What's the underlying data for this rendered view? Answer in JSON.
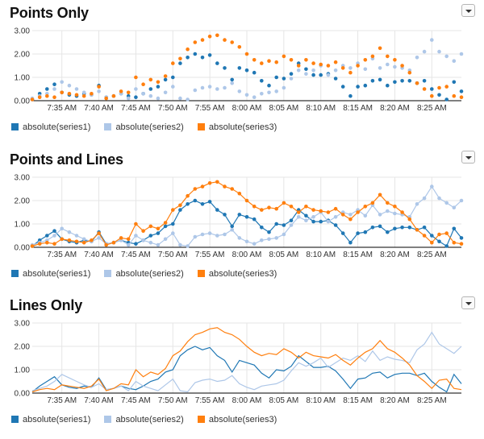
{
  "colors": {
    "series1": "#1f77b4",
    "series2": "#aec7e8",
    "series3": "#ff7f0e",
    "grid": "#e5e5e5",
    "axis": "#000000"
  },
  "legend_labels": [
    "absolute(series1)",
    "absolute(series2)",
    "absolute(series3)"
  ],
  "menu_icon": "caret-down-icon",
  "chart_data": [
    {
      "type": "scatter",
      "title": "Points Only",
      "x_unit": "time",
      "y_ticks": [
        "0.00",
        "1.00",
        "2.00",
        "3.00"
      ],
      "x_ticks": [
        "7:35 AM",
        "7:40 AM",
        "7:45 AM",
        "7:50 AM",
        "7:55 AM",
        "8:00 AM",
        "8:05 AM",
        "8:10 AM",
        "8:15 AM",
        "8:20 AM",
        "8:25 AM"
      ],
      "x_range": [
        "7:31 AM",
        "8:29 AM"
      ],
      "ylim": [
        0,
        3
      ],
      "grid": true,
      "legend_placement": "bottom-left",
      "show_points": true,
      "show_lines": false
    },
    {
      "type": "line",
      "title": "Points and Lines",
      "x_unit": "time",
      "y_ticks": [
        "0.00",
        "1.00",
        "2.00",
        "3.00"
      ],
      "x_ticks": [
        "7:35 AM",
        "7:40 AM",
        "7:45 AM",
        "7:50 AM",
        "7:55 AM",
        "8:00 AM",
        "8:05 AM",
        "8:10 AM",
        "8:15 AM",
        "8:20 AM",
        "8:25 AM"
      ],
      "x_range": [
        "7:31 AM",
        "8:29 AM"
      ],
      "ylim": [
        0,
        3
      ],
      "grid": true,
      "legend_placement": "bottom-left",
      "show_points": true,
      "show_lines": true
    },
    {
      "type": "line",
      "title": "Lines Only",
      "x_unit": "time",
      "y_ticks": [
        "0.00",
        "1.00",
        "2.00",
        "3.00"
      ],
      "x_ticks": [
        "7:35 AM",
        "7:40 AM",
        "7:45 AM",
        "7:50 AM",
        "7:55 AM",
        "8:00 AM",
        "8:05 AM",
        "8:10 AM",
        "8:15 AM",
        "8:20 AM",
        "8:25 AM"
      ],
      "x_range": [
        "7:31 AM",
        "8:29 AM"
      ],
      "ylim": [
        0,
        3
      ],
      "grid": true,
      "legend_placement": "bottom-left",
      "show_points": false,
      "show_lines": true
    }
  ],
  "series": [
    {
      "key": "series1",
      "x": [
        "7:31 AM",
        "7:32 AM",
        "7:33 AM",
        "7:34 AM",
        "7:35 AM",
        "7:36 AM",
        "7:37 AM",
        "7:38 AM",
        "7:39 AM",
        "7:40 AM",
        "7:41 AM",
        "7:42 AM",
        "7:43 AM",
        "7:44 AM",
        "7:45 AM",
        "7:46 AM",
        "7:47 AM",
        "7:48 AM",
        "7:49 AM",
        "7:50 AM",
        "7:51 AM",
        "7:52 AM",
        "7:53 AM",
        "7:54 AM",
        "7:55 AM",
        "7:56 AM",
        "7:57 AM",
        "7:58 AM",
        "7:59 AM",
        "8:00 AM",
        "8:01 AM",
        "8:02 AM",
        "8:03 AM",
        "8:04 AM",
        "8:05 AM",
        "8:06 AM",
        "8:07 AM",
        "8:08 AM",
        "8:09 AM",
        "8:10 AM",
        "8:11 AM",
        "8:12 AM",
        "8:13 AM",
        "8:14 AM",
        "8:15 AM",
        "8:16 AM",
        "8:17 AM",
        "8:18 AM",
        "8:19 AM",
        "8:20 AM",
        "8:21 AM",
        "8:22 AM",
        "8:23 AM",
        "8:24 AM",
        "8:25 AM",
        "8:26 AM",
        "8:27 AM",
        "8:28 AM",
        "8:29 AM"
      ],
      "values": [
        0.05,
        0.3,
        0.5,
        0.7,
        0.35,
        0.25,
        0.2,
        0.3,
        0.25,
        0.65,
        0.15,
        0.2,
        0.3,
        0.2,
        0.15,
        0.3,
        0.5,
        0.6,
        0.9,
        1.0,
        1.6,
        1.85,
        2.0,
        1.85,
        1.95,
        1.6,
        1.4,
        0.9,
        1.4,
        1.3,
        1.2,
        0.85,
        0.65,
        1.0,
        0.95,
        1.15,
        1.6,
        1.35,
        1.1,
        1.1,
        1.15,
        0.95,
        0.6,
        0.2,
        0.6,
        0.65,
        0.85,
        0.9,
        0.65,
        0.8,
        0.85,
        0.85,
        0.75,
        0.85,
        0.5,
        0.25,
        0.05,
        0.8,
        0.4
      ]
    },
    {
      "key": "series2",
      "x": [
        "7:31 AM",
        "7:32 AM",
        "7:33 AM",
        "7:34 AM",
        "7:35 AM",
        "7:36 AM",
        "7:37 AM",
        "7:38 AM",
        "7:39 AM",
        "7:40 AM",
        "7:41 AM",
        "7:42 AM",
        "7:43 AM",
        "7:44 AM",
        "7:45 AM",
        "7:46 AM",
        "7:47 AM",
        "7:48 AM",
        "7:49 AM",
        "7:50 AM",
        "7:51 AM",
        "7:52 AM",
        "7:53 AM",
        "7:54 AM",
        "7:55 AM",
        "7:56 AM",
        "7:57 AM",
        "7:58 AM",
        "7:59 AM",
        "8:00 AM",
        "8:01 AM",
        "8:02 AM",
        "8:03 AM",
        "8:04 AM",
        "8:05 AM",
        "8:06 AM",
        "8:07 AM",
        "8:08 AM",
        "8:09 AM",
        "8:10 AM",
        "8:11 AM",
        "8:12 AM",
        "8:13 AM",
        "8:14 AM",
        "8:15 AM",
        "8:16 AM",
        "8:17 AM",
        "8:18 AM",
        "8:19 AM",
        "8:20 AM",
        "8:21 AM",
        "8:22 AM",
        "8:23 AM",
        "8:24 AM",
        "8:25 AM",
        "8:26 AM",
        "8:27 AM",
        "8:28 AM",
        "8:29 AM"
      ],
      "values": [
        0.1,
        0.2,
        0.3,
        0.5,
        0.8,
        0.65,
        0.5,
        0.35,
        0.25,
        0.4,
        0.15,
        0.2,
        0.3,
        0.1,
        0.5,
        0.3,
        0.2,
        0.1,
        0.35,
        0.6,
        0.1,
        0.05,
        0.45,
        0.55,
        0.6,
        0.5,
        0.55,
        0.75,
        0.4,
        0.25,
        0.15,
        0.3,
        0.35,
        0.4,
        0.55,
        0.95,
        1.3,
        1.15,
        1.3,
        1.5,
        1.1,
        1.3,
        1.5,
        1.4,
        1.6,
        1.35,
        1.8,
        1.4,
        1.55,
        1.45,
        1.4,
        1.3,
        1.85,
        2.1,
        2.6,
        2.1,
        1.9,
        1.7,
        2.0
      ]
    },
    {
      "key": "series3",
      "x": [
        "7:31 AM",
        "7:32 AM",
        "7:33 AM",
        "7:34 AM",
        "7:35 AM",
        "7:36 AM",
        "7:37 AM",
        "7:38 AM",
        "7:39 AM",
        "7:40 AM",
        "7:41 AM",
        "7:42 AM",
        "7:43 AM",
        "7:44 AM",
        "7:45 AM",
        "7:46 AM",
        "7:47 AM",
        "7:48 AM",
        "7:49 AM",
        "7:50 AM",
        "7:51 AM",
        "7:52 AM",
        "7:53 AM",
        "7:54 AM",
        "7:55 AM",
        "7:56 AM",
        "7:57 AM",
        "7:58 AM",
        "7:59 AM",
        "8:00 AM",
        "8:01 AM",
        "8:02 AM",
        "8:03 AM",
        "8:04 AM",
        "8:05 AM",
        "8:06 AM",
        "8:07 AM",
        "8:08 AM",
        "8:09 AM",
        "8:10 AM",
        "8:11 AM",
        "8:12 AM",
        "8:13 AM",
        "8:14 AM",
        "8:15 AM",
        "8:16 AM",
        "8:17 AM",
        "8:18 AM",
        "8:19 AM",
        "8:20 AM",
        "8:21 AM",
        "8:22 AM",
        "8:23 AM",
        "8:24 AM",
        "8:25 AM",
        "8:26 AM",
        "8:27 AM",
        "8:28 AM",
        "8:29 AM"
      ],
      "values": [
        0.05,
        0.15,
        0.2,
        0.15,
        0.35,
        0.3,
        0.25,
        0.2,
        0.3,
        0.6,
        0.1,
        0.2,
        0.4,
        0.35,
        1.0,
        0.7,
        0.9,
        0.8,
        1.05,
        1.6,
        1.8,
        2.2,
        2.5,
        2.6,
        2.75,
        2.8,
        2.6,
        2.5,
        2.3,
        2.0,
        1.75,
        1.6,
        1.7,
        1.65,
        1.9,
        1.75,
        1.5,
        1.75,
        1.6,
        1.55,
        1.5,
        1.65,
        1.4,
        1.2,
        1.5,
        1.75,
        1.9,
        2.25,
        1.9,
        1.75,
        1.5,
        1.2,
        0.75,
        0.5,
        0.2,
        0.55,
        0.6,
        0.2,
        0.15
      ]
    }
  ]
}
